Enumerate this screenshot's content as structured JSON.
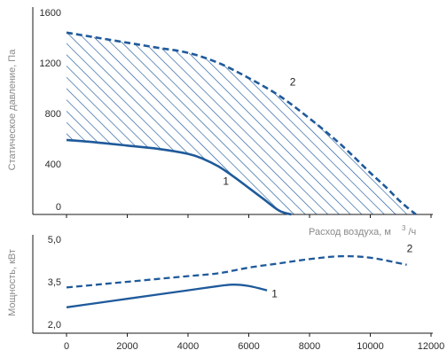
{
  "colors": {
    "curve": "#1f5a9b",
    "axis": "#1a1a1a",
    "label_gray": "#8a8a8a"
  },
  "chart_data": [
    {
      "type": "line",
      "id": "pressure",
      "ylabel": "Статическое давление, Па",
      "xlabel": "Расход воздуха, м",
      "xlabel_sup": "3",
      "xlabel_suffix": "/ч",
      "ylim": [
        0,
        1600
      ],
      "yticks": [
        "1600",
        "1200",
        "800",
        "400",
        "0"
      ],
      "ytick_values": [
        1600,
        1200,
        800,
        400,
        0
      ],
      "xlim": [
        0,
        12000
      ],
      "hatched_region": "between curve 1 and curve 2",
      "series": [
        {
          "label": "1",
          "style": "solid",
          "x": [
            0,
            1000,
            2000,
            3000,
            4000,
            4500,
            5000,
            5500,
            6000,
            6500,
            7000,
            7400
          ],
          "y": [
            590,
            570,
            545,
            520,
            480,
            440,
            380,
            300,
            210,
            120,
            30,
            0
          ]
        },
        {
          "label": "2",
          "style": "dashed",
          "x": [
            0,
            1000,
            2000,
            3000,
            4000,
            5000,
            6000,
            7000,
            8000,
            9000,
            10000,
            10500,
            11000,
            11500
          ],
          "y": [
            1440,
            1400,
            1360,
            1320,
            1280,
            1200,
            1080,
            940,
            760,
            560,
            330,
            220,
            100,
            0
          ]
        }
      ]
    },
    {
      "type": "line",
      "id": "power",
      "ylabel": "Мощность, кВт",
      "ylim": [
        2.0,
        5.0
      ],
      "yticks": [
        "5,0",
        "3,5",
        "2,0"
      ],
      "ytick_values": [
        5.0,
        3.5,
        2.0
      ],
      "xlim": [
        0,
        12000
      ],
      "xticks": [
        "0",
        "2000",
        "4000",
        "6000",
        "8000",
        "10000",
        "12000"
      ],
      "xtick_values": [
        0,
        2000,
        4000,
        6000,
        8000,
        10000,
        12000
      ],
      "series": [
        {
          "label": "1",
          "style": "solid",
          "x": [
            0,
            1000,
            2000,
            3000,
            4000,
            5000,
            5500,
            6000,
            6600
          ],
          "y": [
            2.6,
            2.75,
            2.9,
            3.05,
            3.2,
            3.35,
            3.4,
            3.35,
            3.2
          ]
        },
        {
          "label": "2",
          "style": "dashed",
          "x": [
            0,
            1000,
            2000,
            3000,
            4000,
            5000,
            6000,
            7000,
            8000,
            9000,
            10000,
            11200
          ],
          "y": [
            3.3,
            3.4,
            3.5,
            3.6,
            3.7,
            3.8,
            4.0,
            4.15,
            4.3,
            4.4,
            4.35,
            4.1
          ]
        }
      ]
    }
  ]
}
